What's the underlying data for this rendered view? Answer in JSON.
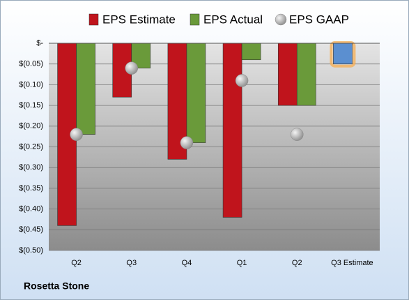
{
  "chart_data": {
    "type": "bar",
    "title": "Rosetta Stone",
    "categories": [
      "Q2",
      "Q3",
      "Q4",
      "Q1",
      "Q2",
      "Q3 Estimate"
    ],
    "series": [
      {
        "name": "EPS Estimate",
        "type": "bar",
        "color": "#c0141c",
        "colors": [
          "#c0141c",
          "#c0141c",
          "#c0141c",
          "#c0141c",
          "#c0141c",
          "#5b8fd0"
        ],
        "values": [
          -0.44,
          -0.13,
          -0.28,
          -0.42,
          -0.15,
          -0.05
        ]
      },
      {
        "name": "EPS Actual",
        "type": "bar",
        "color": "#6a9a3a",
        "values": [
          -0.22,
          -0.06,
          -0.24,
          -0.04,
          -0.15,
          null
        ]
      },
      {
        "name": "EPS GAAP",
        "type": "scatter",
        "color": "#a8a8a8",
        "values": [
          -0.22,
          -0.06,
          -0.24,
          -0.09,
          -0.22,
          null
        ]
      }
    ],
    "ylim": [
      0,
      -0.5
    ],
    "yticks": [
      {
        "value": 0,
        "label": "$-"
      },
      {
        "value": -0.05,
        "label": "$(0.05)"
      },
      {
        "value": -0.1,
        "label": "$(0.10)"
      },
      {
        "value": -0.15,
        "label": "$(0.15)"
      },
      {
        "value": -0.2,
        "label": "$(0.20)"
      },
      {
        "value": -0.25,
        "label": "$(0.25)"
      },
      {
        "value": -0.3,
        "label": "$(0.30)"
      },
      {
        "value": -0.35,
        "label": "$(0.35)"
      },
      {
        "value": -0.4,
        "label": "$(0.40)"
      },
      {
        "value": -0.45,
        "label": "$(0.45)"
      },
      {
        "value": -0.5,
        "label": "$(0.50)"
      }
    ],
    "grid": true
  }
}
